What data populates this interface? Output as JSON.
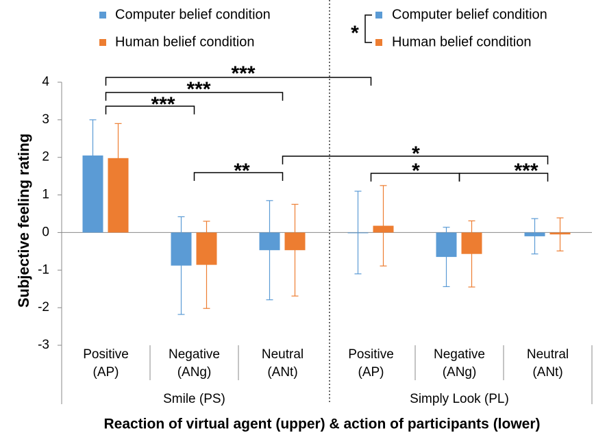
{
  "chart_data": {
    "type": "bar",
    "ylabel": "Subjective feeling rating",
    "xlabel": "Reaction of virtual agent (upper) & action of participants (lower)",
    "categories": [
      [
        "Positive",
        "(AP)"
      ],
      [
        "Negative",
        "(ANg)"
      ],
      [
        "Neutral",
        "(ANt)"
      ],
      [
        "Positive",
        "(AP)"
      ],
      [
        "Negative",
        "(ANg)"
      ],
      [
        "Neutral",
        "(ANt)"
      ]
    ],
    "groups": [
      "Smile (PS)",
      "Simply Look (PL)"
    ],
    "series": [
      {
        "name": "Computer belief condition",
        "color": "#5b9bd5",
        "values": [
          2.05,
          -0.88,
          -0.47,
          0.0,
          -0.65,
          -0.1
        ],
        "errors": [
          0.95,
          1.3,
          1.32,
          1.1,
          0.79,
          0.47
        ]
      },
      {
        "name": "Human belief condition",
        "color": "#ed7d31",
        "values": [
          1.98,
          -0.86,
          -0.47,
          0.18,
          -0.57,
          -0.05
        ],
        "errors": [
          0.92,
          1.16,
          1.22,
          1.07,
          0.88,
          0.44
        ]
      }
    ],
    "ylim": [
      -3,
      4
    ],
    "yticks": [
      -3,
      -2,
      -1,
      0,
      1,
      2,
      3,
      4
    ],
    "annotations": [
      "***",
      "***",
      "***",
      "**",
      "*",
      "*",
      "***"
    ],
    "legend_annotation": "*"
  }
}
